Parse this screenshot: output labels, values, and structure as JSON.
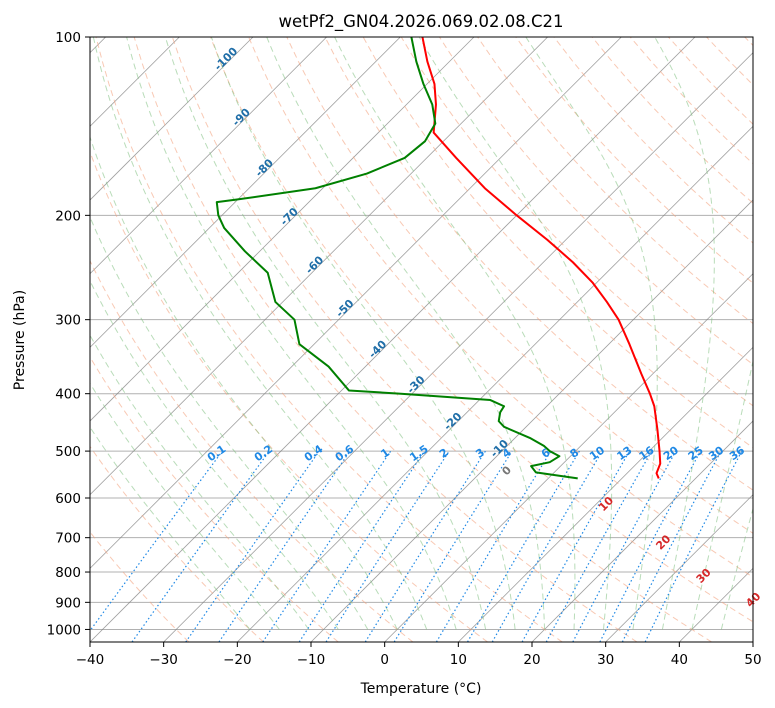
{
  "chart_data": {
    "type": "line",
    "title": "wetPf2_GN04.2026.069.02.08.C21",
    "xlabel": "Temperature (°C)",
    "ylabel": "Pressure (hPa)",
    "xlim": [
      -40,
      50
    ],
    "ylim": [
      1050,
      100
    ],
    "y_scale": "log",
    "x_ticks": [
      -40,
      -30,
      -20,
      -10,
      0,
      10,
      20,
      30,
      40,
      50
    ],
    "y_ticks": [
      1000,
      900,
      800,
      700,
      600,
      500,
      400,
      300,
      200,
      100
    ],
    "grid": true,
    "series": [
      {
        "role": "temperature",
        "color": "#ff0000",
        "points": [
          {
            "p": 556,
            "t": 15.0
          },
          {
            "p": 545,
            "t": 14.0
          },
          {
            "p": 525,
            "t": 13.2
          },
          {
            "p": 500,
            "t": 11.4
          },
          {
            "p": 460,
            "t": 8.2
          },
          {
            "p": 420,
            "t": 4.6
          },
          {
            "p": 400,
            "t": 2.3
          },
          {
            "p": 370,
            "t": -1.6
          },
          {
            "p": 330,
            "t": -7.2
          },
          {
            "p": 300,
            "t": -12.0
          },
          {
            "p": 280,
            "t": -16.0
          },
          {
            "p": 260,
            "t": -20.5
          },
          {
            "p": 240,
            "t": -26.0
          },
          {
            "p": 220,
            "t": -32.5
          },
          {
            "p": 200,
            "t": -40.0
          },
          {
            "p": 180,
            "t": -48.0
          },
          {
            "p": 160,
            "t": -56.0
          },
          {
            "p": 145,
            "t": -62.5
          },
          {
            "p": 130,
            "t": -66.0
          },
          {
            "p": 120,
            "t": -69.0
          },
          {
            "p": 110,
            "t": -73.0
          },
          {
            "p": 100,
            "t": -77.0
          }
        ]
      },
      {
        "role": "dewpoint",
        "color": "#008000",
        "points": [
          {
            "p": 556,
            "t": 4.0
          },
          {
            "p": 550,
            "t": 1.0
          },
          {
            "p": 543,
            "t": -2.5
          },
          {
            "p": 530,
            "t": -4.0
          },
          {
            "p": 522,
            "t": -2.0
          },
          {
            "p": 510,
            "t": -1.5
          },
          {
            "p": 500,
            "t": -3.5
          },
          {
            "p": 490,
            "t": -5.0
          },
          {
            "p": 475,
            "t": -8.0
          },
          {
            "p": 455,
            "t": -13.0
          },
          {
            "p": 445,
            "t": -14.5
          },
          {
            "p": 430,
            "t": -15.5
          },
          {
            "p": 420,
            "t": -15.8
          },
          {
            "p": 410,
            "t": -18.5
          },
          {
            "p": 400,
            "t": -31.5
          },
          {
            "p": 395,
            "t": -39.0
          },
          {
            "p": 360,
            "t": -45.0
          },
          {
            "p": 330,
            "t": -52.0
          },
          {
            "p": 300,
            "t": -56.0
          },
          {
            "p": 280,
            "t": -61.0
          },
          {
            "p": 250,
            "t": -66.0
          },
          {
            "p": 230,
            "t": -72.0
          },
          {
            "p": 210,
            "t": -78.0
          },
          {
            "p": 200,
            "t": -80.5
          },
          {
            "p": 190,
            "t": -82.5
          },
          {
            "p": 188,
            "t": -80.0
          },
          {
            "p": 180,
            "t": -71.0
          },
          {
            "p": 170,
            "t": -66.0
          },
          {
            "p": 160,
            "t": -63.0
          },
          {
            "p": 150,
            "t": -62.5
          },
          {
            "p": 140,
            "t": -63.5
          },
          {
            "p": 130,
            "t": -66.5
          },
          {
            "p": 120,
            "t": -70.5
          },
          {
            "p": 110,
            "t": -74.5
          },
          {
            "p": 100,
            "t": -78.5
          }
        ]
      }
    ],
    "saturation_mixing_ratio_labels": [
      "0.1",
      "0.2",
      "0.4",
      "0.6",
      "1",
      "1.5",
      "2",
      "3",
      "4",
      "6",
      "8",
      "10",
      "13",
      "16",
      "20",
      "25",
      "30",
      "36"
    ],
    "dry_adiabat_labels": [
      "-100",
      "-90",
      "-80",
      "-70",
      "-60",
      "-50",
      "-40",
      "-30",
      "-20",
      "-10"
    ],
    "moist_adiabat_labels": [
      "0",
      "10",
      "20",
      "30",
      "40"
    ],
    "colors": {
      "temperature": "#ff0000",
      "dewpoint": "#008000",
      "isotherm": "#808080",
      "dry_adiabat": "#f4a582",
      "moist_adiabat": "#7fbf7f",
      "mixing_ratio": "#1e88e5",
      "mixing_label": "#1e88e5",
      "dry_label": "#1f6ea8",
      "moist_label_warm": "#d62728",
      "moist_label_zero": "#777777",
      "grid": "#b0b0b0"
    }
  }
}
